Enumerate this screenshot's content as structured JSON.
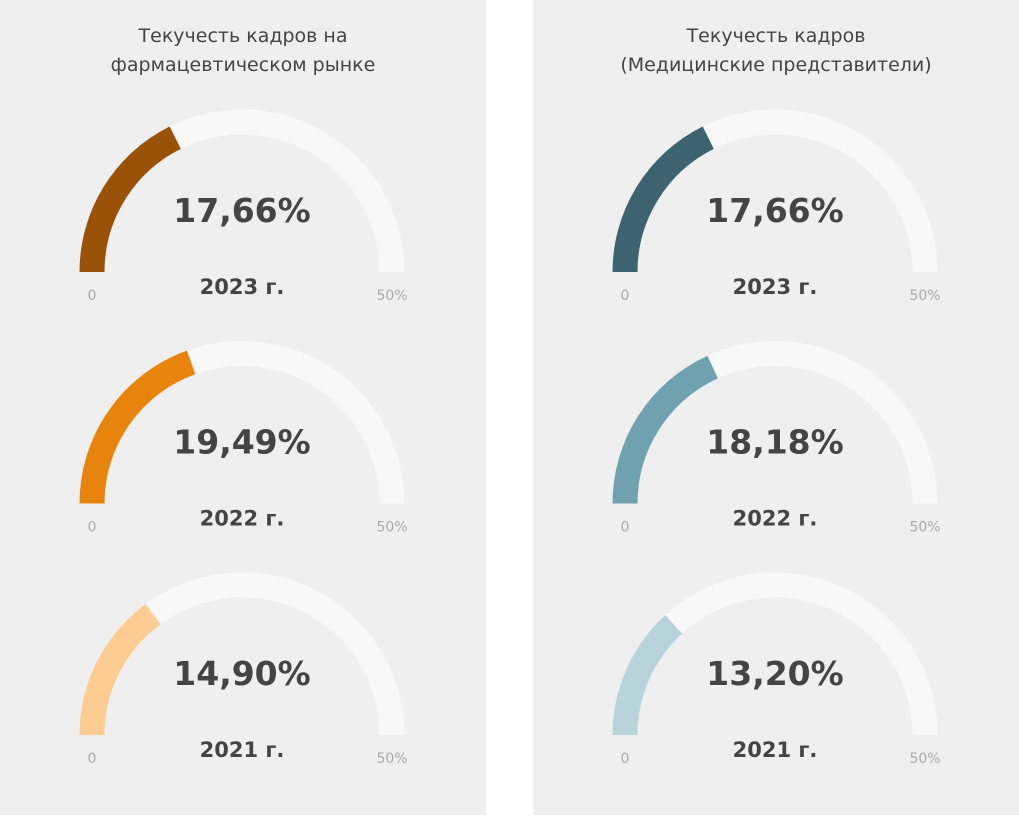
{
  "chart_data": [
    {
      "type": "gauge",
      "title": "Текучесть кадров на\nфармацевтическом рынке",
      "categories": [
        "2023 г.",
        "2022 г.",
        "2021 г."
      ],
      "values": [
        17.66,
        19.49,
        14.9
      ],
      "value_labels": [
        "17,66%",
        "19,49%",
        "14,90%"
      ],
      "colors": [
        "#9a5208",
        "#e8830c",
        "#fccc93"
      ],
      "ylim": [
        0,
        50
      ],
      "yticks": [
        0,
        {
          "value": 50,
          "label": "50%"
        }
      ]
    },
    {
      "type": "gauge",
      "title": "Текучесть кадров\n(Медицинские представители)",
      "categories": [
        "2023 г.",
        "2022 г.",
        "2021 г."
      ],
      "values": [
        17.66,
        18.18,
        13.2
      ],
      "value_labels": [
        "17,66%",
        "18,18%",
        "13,20%"
      ],
      "colors": [
        "#3e6370",
        "#6fa1b0",
        "#b9d3db"
      ],
      "ylim": [
        0,
        50
      ],
      "yticks": [
        0,
        {
          "value": 50,
          "label": "50%"
        }
      ]
    }
  ]
}
